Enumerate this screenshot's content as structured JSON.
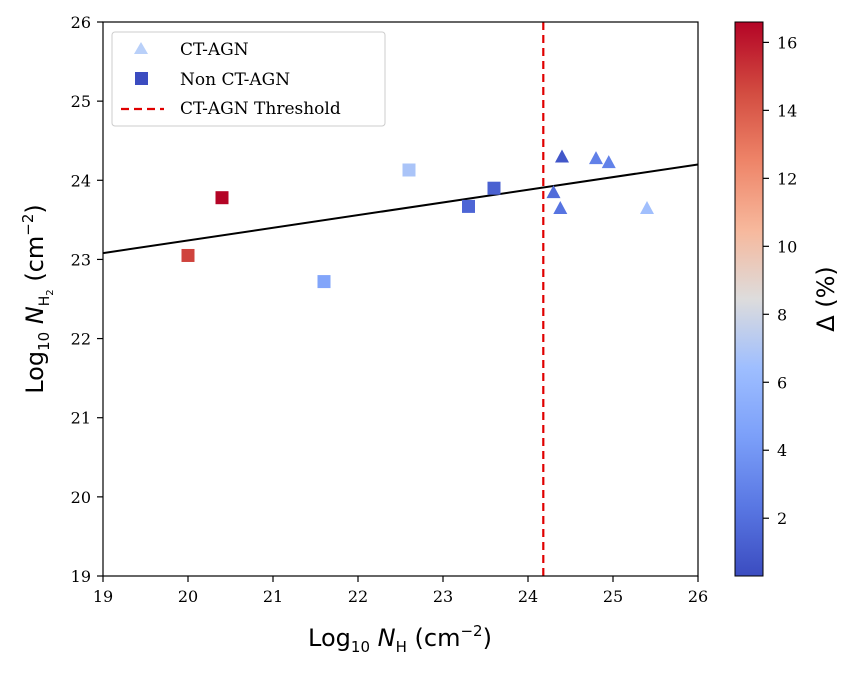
{
  "chart_data": {
    "type": "scatter",
    "xlabel_parts": {
      "prefix": "Log",
      "sub": "10",
      "var": "N",
      "var_sub": "H",
      "unit_open": " (cm",
      "unit_exp": "−2",
      "unit_close": ")"
    },
    "ylabel_parts": {
      "prefix": "Log",
      "sub": "10",
      "var": "N",
      "var_sub": "H",
      "var_sub2": "2",
      "unit_open": " (cm",
      "unit_exp": "−2",
      "unit_close": ")"
    },
    "xlim": [
      19,
      26
    ],
    "ylim": [
      19,
      26
    ],
    "x_ticks": [
      "19",
      "20",
      "21",
      "22",
      "23",
      "24",
      "25",
      "26"
    ],
    "y_ticks": [
      "19",
      "20",
      "21",
      "22",
      "23",
      "24",
      "25",
      "26"
    ],
    "threshold": {
      "label": "CT-AGN Threshold",
      "x": 24.18,
      "color": "#e00000"
    },
    "fit_line": {
      "x": [
        19,
        26
      ],
      "y": [
        23.08,
        24.2
      ],
      "color": "#000000"
    },
    "colorbar": {
      "label": "Δ (%)",
      "range": [
        0.3,
        16.6
      ],
      "ticks": [
        "2",
        "4",
        "6",
        "8",
        "10",
        "12",
        "14",
        "16"
      ],
      "colormap": "coolwarm"
    },
    "series": [
      {
        "name": "CT-AGN",
        "marker": "triangle",
        "legend_color": "#b9d0f9",
        "points": [
          {
            "x": 24.3,
            "y": 23.85,
            "delta": 1.8
          },
          {
            "x": 24.38,
            "y": 23.65,
            "delta": 2.2
          },
          {
            "x": 24.4,
            "y": 24.3,
            "delta": 0.8
          },
          {
            "x": 24.8,
            "y": 24.28,
            "delta": 2.8
          },
          {
            "x": 24.95,
            "y": 24.23,
            "delta": 2.9
          },
          {
            "x": 25.4,
            "y": 23.65,
            "delta": 6.5
          }
        ]
      },
      {
        "name": "Non CT-AGN",
        "marker": "square",
        "legend_color": "#3b4cc0",
        "points": [
          {
            "x": 20.0,
            "y": 23.05,
            "delta": 14.8
          },
          {
            "x": 20.4,
            "y": 23.78,
            "delta": 16.6
          },
          {
            "x": 21.6,
            "y": 22.72,
            "delta": 4.8
          },
          {
            "x": 22.6,
            "y": 24.13,
            "delta": 6.8
          },
          {
            "x": 23.3,
            "y": 23.67,
            "delta": 1.5
          },
          {
            "x": 23.6,
            "y": 23.9,
            "delta": 1.3
          }
        ]
      }
    ]
  }
}
